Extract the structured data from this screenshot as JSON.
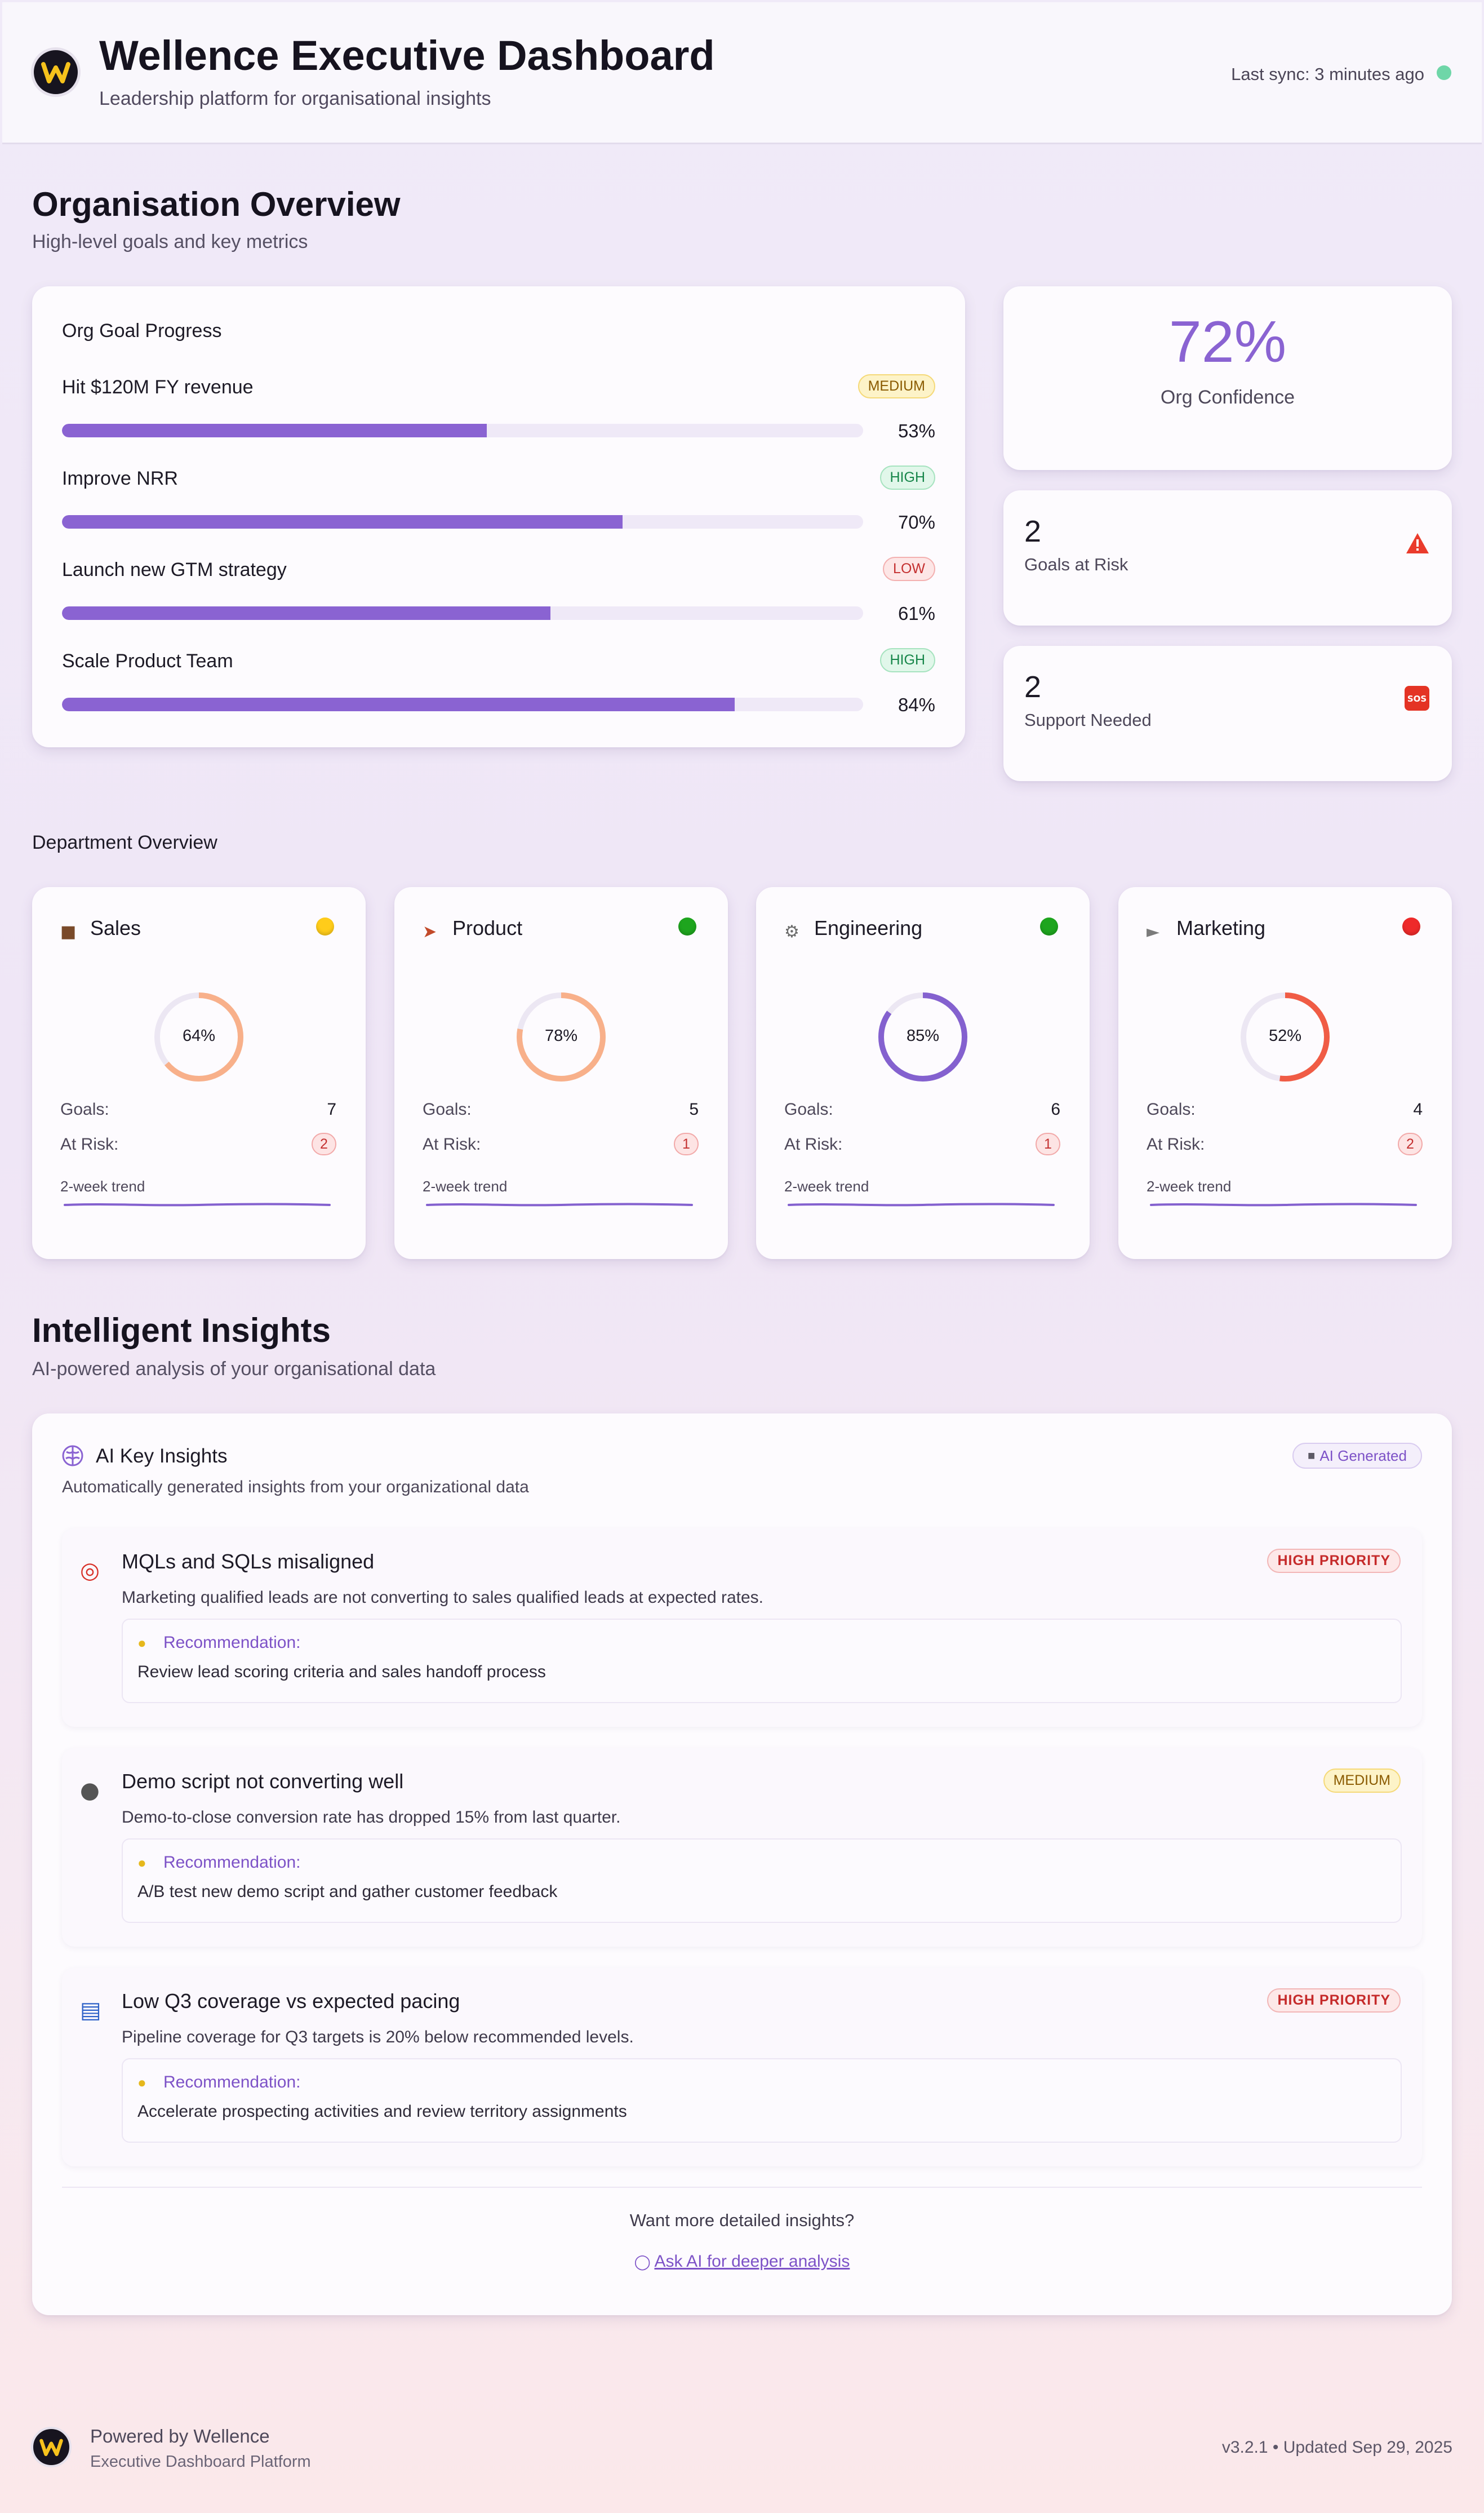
{
  "header": {
    "title": "Wellence Executive Dashboard",
    "subtitle": "Leadership platform for organisational insights",
    "sync": "Last sync: 3 minutes ago",
    "logo_letter": "W"
  },
  "overview": {
    "title": "Organisation Overview",
    "subtitle": "High-level goals and key metrics",
    "goal_card_title": "Org Goal Progress",
    "goals": [
      {
        "name": "Hit $120M FY revenue",
        "priority": "MEDIUM",
        "progress": 53,
        "pct_label": "53%"
      },
      {
        "name": "Improve NRR",
        "priority": "HIGH",
        "progress": 70,
        "pct_label": "70%"
      },
      {
        "name": "Launch new GTM strategy",
        "priority": "LOW",
        "progress": 61,
        "pct_label": "61%"
      },
      {
        "name": "Scale Product Team",
        "priority": "HIGH",
        "progress": 84,
        "pct_label": "84%"
      }
    ],
    "confidence": {
      "value": "72%",
      "label": "Org Confidence"
    },
    "goals_at_risk": {
      "value": "2",
      "label": "Goals at Risk",
      "icon": "warning-icon"
    },
    "support_needed": {
      "value": "2",
      "label": "Support Needed",
      "icon": "sos-icon"
    }
  },
  "departments": {
    "title": "Department Overview",
    "goals_label": "Goals:",
    "risk_label": "At Risk:",
    "trend_label": "2-week trend",
    "items": [
      {
        "name": "Sales",
        "icon": "briefcase-icon",
        "status": "yellow",
        "status_color": "#ffcc1a",
        "score": 64,
        "score_label": "64%",
        "ring_color": "#f8b08a",
        "goals": "7",
        "at_risk": "2"
      },
      {
        "name": "Product",
        "icon": "rocket-icon",
        "status": "green",
        "status_color": "#1ea51e",
        "score": 78,
        "score_label": "78%",
        "ring_color": "#f8b08a",
        "goals": "5",
        "at_risk": "1"
      },
      {
        "name": "Engineering",
        "icon": "gear-icon",
        "status": "green",
        "status_color": "#1ea51e",
        "score": 85,
        "score_label": "85%",
        "ring_color": "#8461cf",
        "goals": "6",
        "at_risk": "1"
      },
      {
        "name": "Marketing",
        "icon": "megaphone-icon",
        "status": "red",
        "status_color": "#ee2a2a",
        "score": 52,
        "score_label": "52%",
        "ring_color": "#f05c45",
        "goals": "4",
        "at_risk": "2"
      }
    ]
  },
  "insights": {
    "title": "Intelligent Insights",
    "subtitle": "AI-powered analysis of your organisational data",
    "card_title": "AI Key Insights",
    "card_subtitle": "Automatically generated insights from your organizational data",
    "ai_badge": "AI Generated",
    "rec_label": "Recommendation:",
    "items": [
      {
        "icon": "target-icon",
        "title": "MQLs and SQLs misaligned",
        "priority": "HIGH PRIORITY",
        "description": "Marketing qualified leads are not converting to sales qualified leads at expected rates.",
        "recommendation": "Review lead scoring criteria and sales handoff process"
      },
      {
        "icon": "microphone-icon",
        "title": "Demo script not converting well",
        "priority": "MEDIUM",
        "description": "Demo-to-close conversion rate has dropped 15% from last quarter.",
        "recommendation": "A/B test new demo script and gather customer feedback"
      },
      {
        "icon": "bar-chart-icon",
        "title": "Low Q3 coverage vs expected pacing",
        "priority": "HIGH PRIORITY",
        "description": "Pipeline coverage for Q3 targets is 20% below recommended levels.",
        "recommendation": "Accelerate prospecting activities and review territory assignments"
      }
    ],
    "more_question": "Want more detailed insights?",
    "ask_link": "Ask AI for deeper analysis"
  },
  "footer": {
    "powered": "Powered by Wellence",
    "platform": "Executive Dashboard Platform",
    "version": "v3.2.1 • Updated Sep 29, 2025"
  },
  "colors": {
    "accent": "#8a63d2",
    "bar_track": "#efe9f7"
  }
}
